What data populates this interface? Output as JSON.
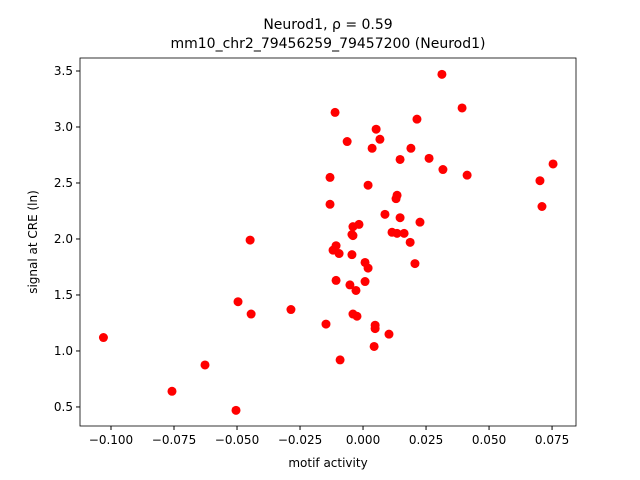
{
  "chart_data": {
    "type": "scatter",
    "title": "Neurod1, ρ = 0.59",
    "subtitle": "mm10_chr2_79456259_79457200 (Neurod1)",
    "x_label": "motif activity",
    "y_label": "signal at CRE (ln)",
    "color": "#ff0000",
    "xlim": [
      -0.1123,
      0.0845
    ],
    "ylim": [
      0.33,
      3.616
    ],
    "xticks": [
      {
        "value": -0.1,
        "label": "−0.100"
      },
      {
        "value": -0.075,
        "label": "−0.075"
      },
      {
        "value": -0.05,
        "label": "−0.050"
      },
      {
        "value": -0.025,
        "label": "−0.025"
      },
      {
        "value": 0,
        "label": "0.000"
      },
      {
        "value": 0.025,
        "label": "0.025"
      },
      {
        "value": 0.05,
        "label": "0.050"
      },
      {
        "value": 0.075,
        "label": "0.075"
      }
    ],
    "yticks": [
      0.5,
      {
        "value": 1,
        "label": "1.0"
      },
      1.5,
      {
        "value": 2,
        "label": "2.0"
      },
      2.5,
      {
        "value": 3,
        "label": "3.0"
      },
      3.5
    ],
    "x": [
      -0.103,
      -0.0758,
      -0.0627,
      -0.0504,
      -0.0496,
      -0.0448,
      -0.0444,
      -0.0286,
      -0.0147,
      -0.0131,
      -0.0131,
      -0.0119,
      -0.0111,
      -0.0107,
      -0.0107,
      -0.0095,
      -0.0091,
      -0.0063,
      -0.0052,
      -0.0044,
      -0.0044,
      -0.004,
      -0.004,
      -0.004,
      -0.0028,
      -0.0024,
      -0.0016,
      0.0008,
      0.0008,
      0.002,
      0.002,
      0.0036,
      0.0044,
      0.0048,
      0.0048,
      0.0052,
      0.0067,
      0.0087,
      0.0103,
      0.0115,
      0.0131,
      0.0135,
      0.0135,
      0.0147,
      0.0147,
      0.0163,
      0.0187,
      0.019,
      0.0206,
      0.0214,
      0.0226,
      0.0262,
      0.0313,
      0.0317,
      0.0393,
      0.0413,
      0.0702,
      0.071,
      0.0754
    ],
    "y": [
      1.12,
      0.64,
      0.875,
      0.47,
      1.44,
      1.99,
      1.33,
      1.37,
      1.24,
      2.55,
      2.31,
      1.9,
      3.13,
      1.94,
      1.63,
      1.87,
      0.92,
      2.87,
      1.59,
      2.04,
      1.86,
      2.11,
      2.03,
      1.33,
      1.54,
      1.31,
      2.13,
      1.79,
      1.62,
      2.48,
      1.74,
      2.81,
      1.04,
      1.23,
      1.2,
      2.98,
      2.89,
      2.22,
      1.15,
      2.06,
      2.36,
      2.05,
      2.39,
      2.71,
      2.19,
      2.05,
      1.97,
      2.81,
      1.78,
      3.07,
      2.15,
      2.72,
      3.47,
      2.62,
      3.17,
      2.57,
      2.52,
      2.29,
      2.67
    ]
  }
}
